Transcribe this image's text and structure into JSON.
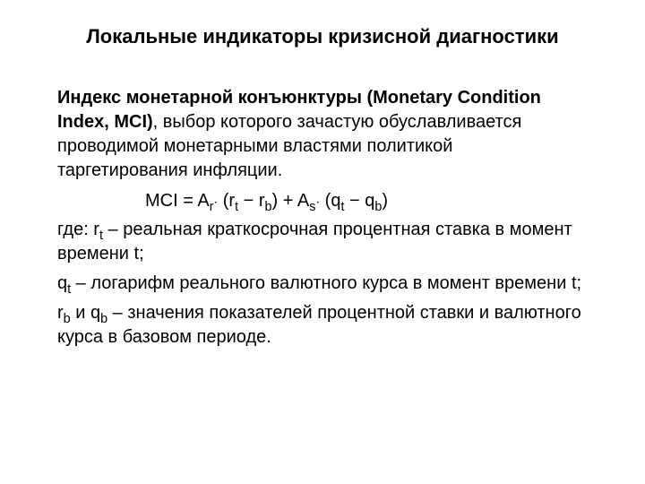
{
  "title": "Локальные индикаторы кризисной диагностики",
  "lead_bold": "Индекс монетарной конъюнктуры (Monetary Condition Index, MCI)",
  "lead_rest": ", выбор которого зачастую обуславливается проводимой монетарными властями политикой таргетирования инфляции.",
  "formula": {
    "lhs": "MCI = A",
    "sub1": "r",
    "mid1": " (r",
    "sub2": "t",
    "mid2": " − r",
    "sub3": "b",
    "mid3": ") + A",
    "sub4": "s",
    "mid4": " (q",
    "sub5": "t",
    "mid5": " − q",
    "sub6": "b",
    "rhs": ")",
    "dot": "·"
  },
  "def1": {
    "pre": "где: r",
    "sub": "t",
    "post": " – реальная краткосрочная процентная ставка в момент времени t;"
  },
  "def2": {
    "pre": "q",
    "sub": "t",
    "post": " – логарифм реального валютного курса в момент времени t;"
  },
  "def3": {
    "pre1": "r",
    "sub1": "b",
    "mid": " и q",
    "sub2": "b",
    "post": " – значения показателей процентной ставки и валютного курса в базовом периоде."
  },
  "colors": {
    "background": "#ffffff",
    "text": "#000000"
  },
  "typography": {
    "title_fontsize": 22,
    "body_fontsize": 20,
    "font_family": "Arial"
  }
}
